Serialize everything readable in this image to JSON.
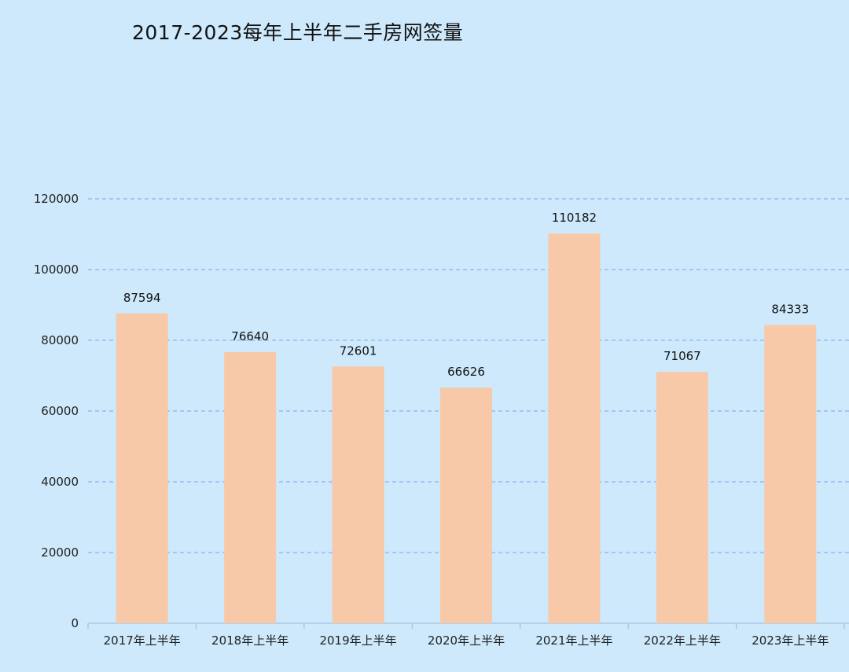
{
  "chart_data": {
    "type": "bar",
    "title": "2017-2023每年上半年二手房网签量",
    "categories": [
      "2017年上半年",
      "2018年上半年",
      "2019年上半年",
      "2020年上半年",
      "2021年上半年",
      "2022年上半年",
      "2023年上半年"
    ],
    "values": [
      87594,
      76640,
      72601,
      66626,
      110182,
      71067,
      84333
    ],
    "ylim": [
      0,
      120000
    ],
    "yticks": [
      0,
      20000,
      40000,
      60000,
      80000,
      100000,
      120000
    ],
    "grid": true,
    "bar_color": "#f8c9a8",
    "grid_color": "#8fb0f0",
    "background": "#cde9fb"
  }
}
